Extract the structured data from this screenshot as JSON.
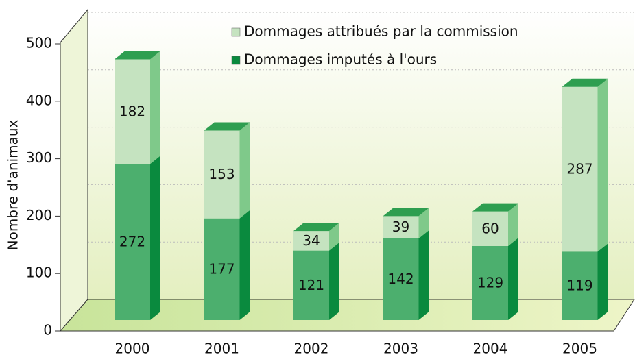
{
  "chart_data": {
    "type": "bar",
    "stacked": true,
    "y_label": "Nombre d'animaux",
    "categories": [
      "2000",
      "2001",
      "2002",
      "2003",
      "2004",
      "2005"
    ],
    "series": [
      {
        "name": "Dommages imputés à l'ours",
        "color": "#4caf6e",
        "values": [
          272,
          177,
          121,
          142,
          129,
          119
        ]
      },
      {
        "name": "Dommages attribués par la commission",
        "color": "#c5e3c0",
        "values": [
          182,
          153,
          34,
          39,
          60,
          287
        ]
      }
    ],
    "ylim": [
      0,
      500
    ],
    "yticks": [
      0,
      100,
      200,
      300,
      400,
      500
    ],
    "grid": true
  }
}
